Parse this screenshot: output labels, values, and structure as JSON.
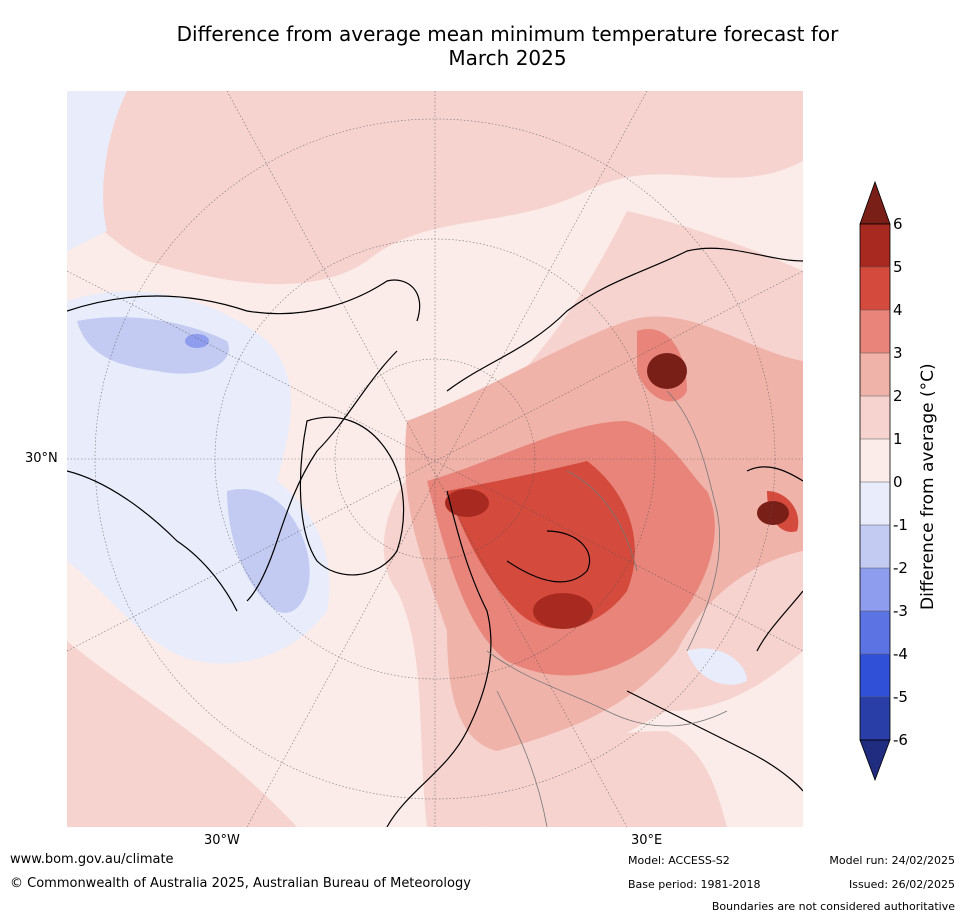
{
  "title_line1": "Difference from average mean minimum temperature forecast for",
  "title_line2": "March 2025",
  "map_labels": {
    "lat_30n": "30°N",
    "lon_30w": "30°W",
    "lon_30e": "30°E"
  },
  "colorbar": {
    "label": "Difference from average (°C)",
    "ticks": [
      "6",
      "5",
      "4",
      "3",
      "2",
      "1",
      "0",
      "-1",
      "-2",
      "-3",
      "-4",
      "-5",
      "-6"
    ],
    "colors": {
      "above_max": "#7a1f18",
      "5_6": "#a8291f",
      "4_5": "#d44a3c",
      "3_4": "#e8847a",
      "2_3": "#f0b3aa",
      "1_2": "#f6d3cf",
      "0_1": "#fbece9",
      "m1_0": "#e8ecfb",
      "m2_m1": "#c3cbf3",
      "m3_m2": "#8e9ded",
      "m4_m3": "#5c73e4",
      "m5_m4": "#3150d8",
      "m6_m5": "#2a3ea8",
      "below_min": "#1f2c80"
    }
  },
  "footer": {
    "website": "www.bom.gov.au/climate",
    "copyright": "© Commonwealth of Australia 2025, Australian Bureau of Meteorology",
    "model": "Model: ACCESS-S2",
    "base_period": "Base period: 1981-2018",
    "model_run": "Model run: 24/02/2025",
    "issued": "Issued: 26/02/2025",
    "boundaries": "Boundaries are not considered authoritative"
  }
}
